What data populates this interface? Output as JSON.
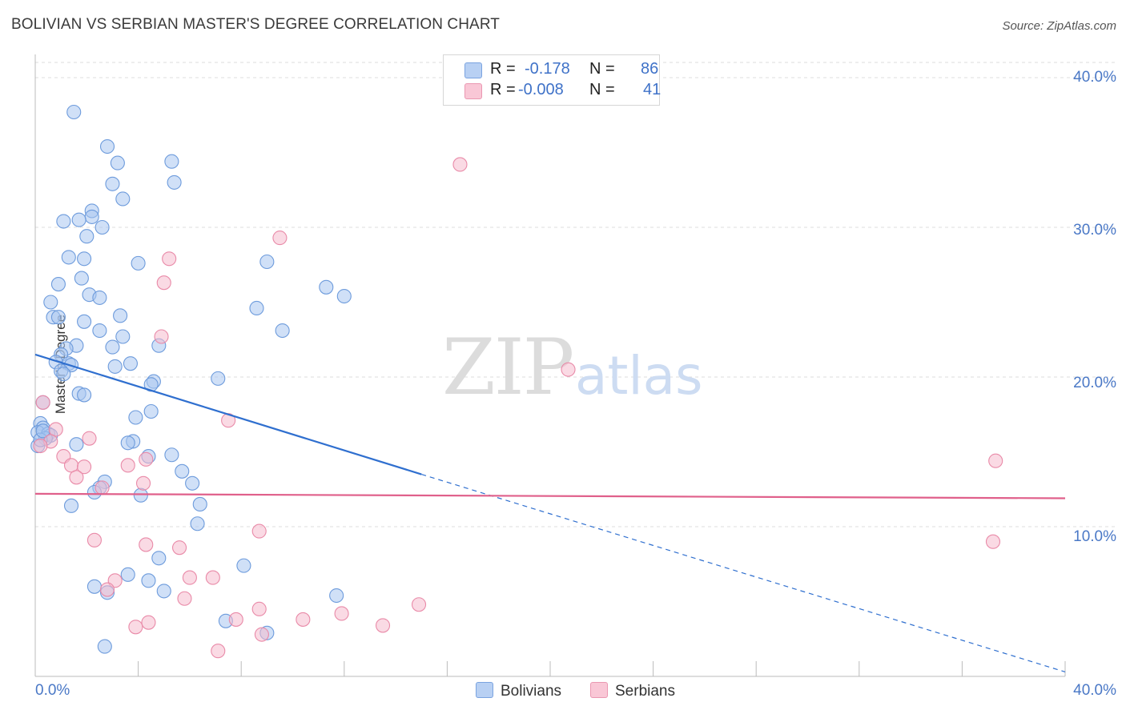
{
  "title": "BOLIVIAN VS SERBIAN MASTER'S DEGREE CORRELATION CHART",
  "source": "Source: ZipAtlas.com",
  "watermark": {
    "zip": "ZIP",
    "atlas": "atlas"
  },
  "legend_top": {
    "rows": [
      {
        "r_label": "R =",
        "r_value": "-0.178",
        "n_label": "N =",
        "n_value": "86",
        "color": "#8fb4ec"
      },
      {
        "r_label": "R =",
        "r_value": "-0.008",
        "n_label": "N =",
        "n_value": "41",
        "color": "#f2a6bf"
      }
    ]
  },
  "legend_bottom": {
    "bolivians": "Bolivians",
    "serbians": "Serbians"
  },
  "colors": {
    "blue_fill": "#a9c6f0",
    "blue_stroke": "#6d9bdc",
    "pink_fill": "#f6bccd",
    "pink_stroke": "#e98aa8",
    "blue_line": "#2f6fcf",
    "pink_line": "#e0608b"
  },
  "chart_data": {
    "type": "scatter",
    "title": "BOLIVIAN VS SERBIAN MASTER'S DEGREE CORRELATION CHART",
    "xlabel": "",
    "ylabel": "Master's Degree",
    "xlim": [
      0,
      40
    ],
    "ylim": [
      0,
      40
    ],
    "x_tick_labels": [
      "0.0%",
      "40.0%"
    ],
    "y_ticks": [
      10,
      20,
      30,
      40
    ],
    "y_tick_labels": [
      "10.0%",
      "20.0%",
      "30.0%",
      "40.0%"
    ],
    "grid": true,
    "series": [
      {
        "name": "Bolivians",
        "r": -0.178,
        "n": 86,
        "trend": {
          "x0": 0.0,
          "y0": 21.5,
          "x1": 15.0,
          "y1": 13.5,
          "dashed_to_x": 40.0,
          "dashed_to_y": 0.3
        },
        "points": [
          [
            1.5,
            37.7
          ],
          [
            2.8,
            35.4
          ],
          [
            3.2,
            34.3
          ],
          [
            5.3,
            34.4
          ],
          [
            3.0,
            32.9
          ],
          [
            5.4,
            33.0
          ],
          [
            3.4,
            31.9
          ],
          [
            2.2,
            31.1
          ],
          [
            2.2,
            30.7
          ],
          [
            1.7,
            30.5
          ],
          [
            1.1,
            30.4
          ],
          [
            2.6,
            30.0
          ],
          [
            2.0,
            29.4
          ],
          [
            1.3,
            28.0
          ],
          [
            1.9,
            27.9
          ],
          [
            4.0,
            27.6
          ],
          [
            9.0,
            27.7
          ],
          [
            1.8,
            26.6
          ],
          [
            0.9,
            26.2
          ],
          [
            11.3,
            26.0
          ],
          [
            12.0,
            25.4
          ],
          [
            2.1,
            25.5
          ],
          [
            2.5,
            25.3
          ],
          [
            0.6,
            25.0
          ],
          [
            8.6,
            24.6
          ],
          [
            0.7,
            24.0
          ],
          [
            0.9,
            24.0
          ],
          [
            3.3,
            24.1
          ],
          [
            1.9,
            23.7
          ],
          [
            2.5,
            23.1
          ],
          [
            9.6,
            23.1
          ],
          [
            3.4,
            22.7
          ],
          [
            4.8,
            22.1
          ],
          [
            1.6,
            22.1
          ],
          [
            3.0,
            22.0
          ],
          [
            1.2,
            21.9
          ],
          [
            1.0,
            21.5
          ],
          [
            0.8,
            21.0
          ],
          [
            3.7,
            20.9
          ],
          [
            1.3,
            20.9
          ],
          [
            1.4,
            20.8
          ],
          [
            3.1,
            20.7
          ],
          [
            1.0,
            20.4
          ],
          [
            1.1,
            20.2
          ],
          [
            7.1,
            19.9
          ],
          [
            4.6,
            19.7
          ],
          [
            4.5,
            19.5
          ],
          [
            1.7,
            18.9
          ],
          [
            1.9,
            18.8
          ],
          [
            0.3,
            18.3
          ],
          [
            4.5,
            17.7
          ],
          [
            3.9,
            17.3
          ],
          [
            0.2,
            16.9
          ],
          [
            0.3,
            16.6
          ],
          [
            0.1,
            16.3
          ],
          [
            0.5,
            16.2
          ],
          [
            0.6,
            16.1
          ],
          [
            0.4,
            15.9
          ],
          [
            3.8,
            15.7
          ],
          [
            3.6,
            15.6
          ],
          [
            1.6,
            15.5
          ],
          [
            0.1,
            15.4
          ],
          [
            5.3,
            14.8
          ],
          [
            4.4,
            14.7
          ],
          [
            5.7,
            13.7
          ],
          [
            6.1,
            12.9
          ],
          [
            2.7,
            13.0
          ],
          [
            2.5,
            12.6
          ],
          [
            2.3,
            12.3
          ],
          [
            4.1,
            12.1
          ],
          [
            6.4,
            11.5
          ],
          [
            1.4,
            11.4
          ],
          [
            6.3,
            10.2
          ],
          [
            4.8,
            7.9
          ],
          [
            8.1,
            7.4
          ],
          [
            3.6,
            6.8
          ],
          [
            4.4,
            6.4
          ],
          [
            2.3,
            6.0
          ],
          [
            5.0,
            5.7
          ],
          [
            2.8,
            5.6
          ],
          [
            11.7,
            5.4
          ],
          [
            7.4,
            3.7
          ],
          [
            9.0,
            2.9
          ],
          [
            2.7,
            2.0
          ],
          [
            0.2,
            15.8
          ],
          [
            0.3,
            16.4
          ]
        ]
      },
      {
        "name": "Serbians",
        "r": -0.008,
        "n": 41,
        "trend": {
          "x0": 0.0,
          "y0": 12.2,
          "x1": 40.0,
          "y1": 11.9
        },
        "points": [
          [
            16.5,
            34.2
          ],
          [
            9.5,
            29.3
          ],
          [
            5.2,
            27.9
          ],
          [
            5.0,
            26.3
          ],
          [
            4.9,
            22.7
          ],
          [
            20.7,
            20.5
          ],
          [
            0.3,
            18.3
          ],
          [
            7.5,
            17.1
          ],
          [
            0.8,
            16.5
          ],
          [
            2.1,
            15.9
          ],
          [
            0.6,
            15.7
          ],
          [
            0.2,
            15.4
          ],
          [
            4.3,
            14.5
          ],
          [
            1.1,
            14.7
          ],
          [
            1.4,
            14.1
          ],
          [
            1.9,
            14.0
          ],
          [
            3.6,
            14.1
          ],
          [
            1.6,
            13.3
          ],
          [
            4.2,
            12.9
          ],
          [
            2.6,
            12.6
          ],
          [
            37.3,
            14.4
          ],
          [
            37.2,
            9.0
          ],
          [
            2.3,
            9.1
          ],
          [
            8.7,
            9.7
          ],
          [
            4.3,
            8.8
          ],
          [
            5.6,
            8.6
          ],
          [
            3.1,
            6.4
          ],
          [
            6.0,
            6.6
          ],
          [
            6.9,
            6.6
          ],
          [
            2.8,
            5.8
          ],
          [
            5.8,
            5.2
          ],
          [
            14.9,
            4.8
          ],
          [
            8.7,
            4.5
          ],
          [
            11.9,
            4.2
          ],
          [
            7.8,
            3.8
          ],
          [
            10.4,
            3.8
          ],
          [
            4.4,
            3.6
          ],
          [
            3.9,
            3.3
          ],
          [
            13.5,
            3.4
          ],
          [
            8.8,
            2.8
          ],
          [
            7.1,
            1.7
          ]
        ]
      }
    ]
  }
}
